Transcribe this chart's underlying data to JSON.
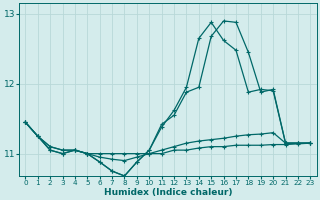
{
  "xlabel": "Humidex (Indice chaleur)",
  "bg_color": "#d4ecec",
  "line_color": "#006868",
  "grid_color": "#b8d8d8",
  "xlim": [
    -0.5,
    23.5
  ],
  "ylim": [
    10.68,
    13.15
  ],
  "yticks": [
    11,
    12,
    13
  ],
  "xticks": [
    0,
    1,
    2,
    3,
    4,
    5,
    6,
    7,
    8,
    9,
    10,
    11,
    12,
    13,
    14,
    15,
    16,
    17,
    18,
    19,
    20,
    21,
    22,
    23
  ],
  "series": [
    {
      "x": [
        0,
        1,
        2,
        3,
        4,
        5,
        6,
        7,
        8,
        9,
        10,
        11,
        12,
        13,
        14,
        15,
        16,
        17,
        18,
        19,
        20,
        21,
        22,
        23
      ],
      "y": [
        11.45,
        11.25,
        11.1,
        11.05,
        11.05,
        11.0,
        11.0,
        11.0,
        11.0,
        11.0,
        11.0,
        11.0,
        11.05,
        11.05,
        11.08,
        11.1,
        11.1,
        11.12,
        11.12,
        11.12,
        11.13,
        11.13,
        11.14,
        11.15
      ]
    },
    {
      "x": [
        0,
        1,
        2,
        3,
        4,
        5,
        6,
        7,
        8,
        9,
        10,
        11,
        12,
        13,
        14,
        15,
        16,
        17,
        18,
        19,
        20,
        21,
        22,
        23
      ],
      "y": [
        11.45,
        11.25,
        11.1,
        11.05,
        11.05,
        11.0,
        10.95,
        10.92,
        10.9,
        10.95,
        11.0,
        11.05,
        11.1,
        11.15,
        11.18,
        11.2,
        11.22,
        11.25,
        11.27,
        11.28,
        11.3,
        11.15,
        11.15,
        11.15
      ]
    },
    {
      "x": [
        0,
        1,
        2,
        3,
        4,
        5,
        6,
        7,
        8,
        9,
        10,
        11,
        12,
        13,
        14,
        15,
        16,
        17,
        18,
        19,
        20,
        21,
        22,
        23
      ],
      "y": [
        11.45,
        11.25,
        11.05,
        11.0,
        11.05,
        11.0,
        10.88,
        10.75,
        10.68,
        10.88,
        11.05,
        11.38,
        11.62,
        11.95,
        12.65,
        12.88,
        12.62,
        12.48,
        11.88,
        11.92,
        11.9,
        11.15,
        11.15,
        11.15
      ]
    },
    {
      "x": [
        0,
        2,
        3,
        4,
        5,
        6,
        7,
        8,
        9,
        10,
        11,
        12,
        13,
        14,
        15,
        16,
        17,
        18,
        19,
        20,
        21,
        22,
        23
      ],
      "y": [
        11.45,
        11.05,
        11.0,
        11.05,
        11.0,
        10.88,
        10.75,
        10.68,
        10.88,
        11.05,
        11.42,
        11.55,
        11.88,
        11.95,
        12.68,
        12.9,
        12.88,
        12.45,
        11.88,
        11.92,
        11.15,
        11.15,
        11.15
      ]
    }
  ]
}
